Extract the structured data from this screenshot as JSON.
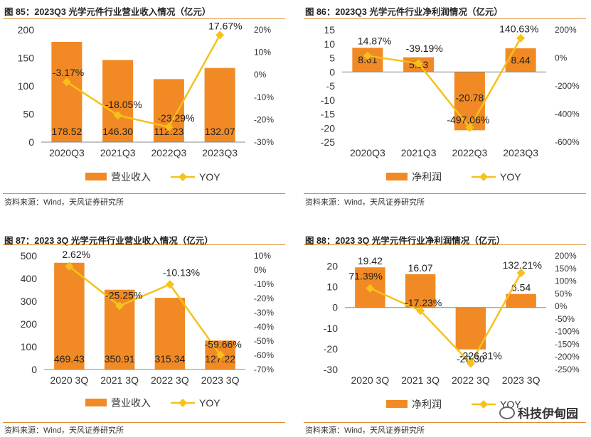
{
  "colors": {
    "bar": "#f18a24",
    "line": "#f6c11a",
    "axis": "#888888",
    "rule": "#e08a2c"
  },
  "source": "资料来源：Wind，天风证券研究所",
  "watermark": "科技伊甸园",
  "chart_data": [
    {
      "type": "bar",
      "title": "图 85：2023Q3 光学元件行业营业收入情况（亿元）",
      "categories": [
        "2020Q3",
        "2021Q3",
        "2022Q3",
        "2023Q3"
      ],
      "series": [
        {
          "name": "营业收入",
          "kind": "bar",
          "axis": "left",
          "values": [
            178.52,
            146.3,
            112.23,
            132.07
          ],
          "labels": [
            "178.52",
            "146.30",
            "112.23",
            "132.07"
          ]
        },
        {
          "name": "YOY",
          "kind": "line",
          "axis": "right",
          "values": [
            -3.17,
            -18.05,
            -23.29,
            17.67
          ],
          "labels": [
            "-3.17%",
            "-18.05%",
            "-23.29%",
            "17.67%"
          ]
        }
      ],
      "ylim": [
        0,
        200
      ],
      "yticks": [
        0,
        50,
        100,
        150,
        200
      ],
      "yticklabels": [
        "0",
        "50",
        "100",
        "150",
        "200"
      ],
      "y2lim": [
        -30,
        20
      ],
      "y2ticks": [
        -30,
        -20,
        -10,
        0,
        10,
        20
      ],
      "y2ticklabels": [
        "-30%",
        "-20%",
        "-10%",
        "0%",
        "10%",
        "20%"
      ],
      "legend": [
        "营业收入",
        "YOY"
      ],
      "legend_position": "bottom"
    },
    {
      "type": "bar",
      "title": "图 86：2023Q3 光学元件行业净利润情况（亿元）",
      "categories": [
        "2020Q3",
        "2021Q3",
        "2022Q3",
        "2023Q3"
      ],
      "series": [
        {
          "name": "净利润",
          "kind": "bar",
          "axis": "left",
          "values": [
            8.61,
            5.23,
            -20.78,
            8.44
          ],
          "labels": [
            "8.61",
            "5.23",
            "-20.78",
            "8.44"
          ]
        },
        {
          "name": "YOY",
          "kind": "line",
          "axis": "right",
          "values": [
            14.87,
            -39.19,
            -497.06,
            140.63
          ],
          "labels": [
            "14.87%",
            "-39.19%",
            "-497.06%",
            "140.63%"
          ]
        }
      ],
      "ylim": [
        -25,
        15
      ],
      "yticks": [
        -25,
        -20,
        -15,
        -10,
        -5,
        0,
        5,
        10,
        15
      ],
      "yticklabels": [
        "-25",
        "-20",
        "-15",
        "-10",
        "-5",
        "0",
        "5",
        "10",
        "15"
      ],
      "y2lim": [
        -600,
        200
      ],
      "y2ticks": [
        -600,
        -400,
        -200,
        0,
        200
      ],
      "y2ticklabels": [
        "-600%",
        "-400%",
        "-200%",
        "0%",
        "200%"
      ],
      "legend": [
        "净利润",
        "YOY"
      ],
      "legend_position": "bottom"
    },
    {
      "type": "bar",
      "title": "图 87：2023 3Q 光学元件行业营业收入情况（亿元）",
      "categories": [
        "2020 3Q",
        "2021 3Q",
        "2022 3Q",
        "2023 3Q"
      ],
      "series": [
        {
          "name": "营业收入",
          "kind": "bar",
          "axis": "left",
          "values": [
            469.43,
            350.91,
            315.34,
            127.22
          ],
          "labels": [
            "469.43",
            "350.91",
            "315.34",
            "127.22"
          ]
        },
        {
          "name": "YOY",
          "kind": "line",
          "axis": "right",
          "values": [
            2.62,
            -25.25,
            -10.13,
            -59.66
          ],
          "labels": [
            "2.62%",
            "-25.25%",
            "-10.13%",
            "-59.66%"
          ]
        }
      ],
      "ylim": [
        0,
        500
      ],
      "yticks": [
        0,
        100,
        200,
        300,
        400,
        500
      ],
      "yticklabels": [
        "0",
        "100",
        "200",
        "300",
        "400",
        "500"
      ],
      "y2lim": [
        -70,
        10
      ],
      "y2ticks": [
        -70,
        -60,
        -50,
        -40,
        -30,
        -20,
        -10,
        0,
        10
      ],
      "y2ticklabels": [
        "-70%",
        "-60%",
        "-50%",
        "-40%",
        "-30%",
        "-20%",
        "-10%",
        "0%",
        "10%"
      ],
      "legend": [
        "营业收入",
        "YOY"
      ],
      "legend_position": "bottom"
    },
    {
      "type": "bar",
      "title": "图 88：2023 3Q 光学元件行业净利润情况（亿元）",
      "categories": [
        "2020 3Q",
        "2021 3Q",
        "2022 3Q",
        "2023 3Q"
      ],
      "series": [
        {
          "name": "净利润",
          "kind": "bar",
          "axis": "left",
          "values": [
            19.42,
            16.07,
            -20.3,
            6.54
          ],
          "labels": [
            "19.42",
            "16.07",
            "-20.30",
            "6.54"
          ]
        },
        {
          "name": "YOY",
          "kind": "line",
          "axis": "right",
          "values": [
            71.39,
            -17.23,
            -226.31,
            132.21
          ],
          "labels": [
            "71.39%",
            "-17.23%",
            "-226.31%",
            "132.21%"
          ]
        }
      ],
      "ylim": [
        -30,
        25
      ],
      "yticks": [
        -30,
        -20,
        -10,
        0,
        10,
        20
      ],
      "yticklabels": [
        "-30",
        "-20",
        "-10",
        "0",
        "10",
        "20"
      ],
      "y2lim": [
        -250,
        200
      ],
      "y2ticks": [
        -250,
        -200,
        -150,
        -100,
        -50,
        0,
        50,
        100,
        150,
        200
      ],
      "y2ticklabels": [
        "-250%",
        "-200%",
        "-150%",
        "-100%",
        "-50%",
        "0%",
        "50%",
        "100%",
        "150%",
        "200%"
      ],
      "legend": [
        "净利润",
        "YOY"
      ],
      "legend_position": "bottom"
    }
  ]
}
